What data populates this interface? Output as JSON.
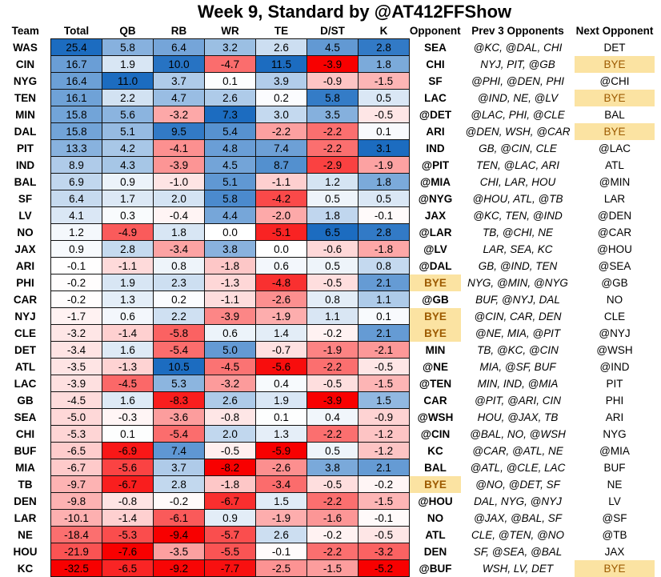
{
  "title": "Week 9, Standard by @AT412FFShow",
  "columns": [
    "Team",
    "Total",
    "QB",
    "RB",
    "WR",
    "TE",
    "D/ST",
    "K",
    "Opponent",
    "Prev  3 Opponents",
    "Next Opponent"
  ],
  "colors": {
    "neg": "#f8696b",
    "pos": "#5a8ac6",
    "bye_bg": "#fbe3a2",
    "bye_text": "#9c5a00"
  },
  "rows": [
    {
      "team": "WAS",
      "values": [
        25.4,
        5.8,
        6.4,
        3.2,
        2.6,
        4.5,
        2.8
      ],
      "opponent": "SEA",
      "prev": "@KC, @DAL, CHI",
      "next": "DET"
    },
    {
      "team": "CIN",
      "values": [
        16.7,
        1.9,
        10.0,
        -4.7,
        11.5,
        -3.9,
        1.8
      ],
      "opponent": "CHI",
      "prev": "NYJ, PIT, @GB",
      "next": "BYE"
    },
    {
      "team": "NYG",
      "values": [
        16.4,
        11.0,
        3.7,
        0.1,
        3.9,
        -0.9,
        -1.5
      ],
      "opponent": "SF",
      "prev": "@PHI, @DEN, PHI",
      "next": "@CHI"
    },
    {
      "team": "TEN",
      "values": [
        16.1,
        2.2,
        4.7,
        2.6,
        0.2,
        5.8,
        0.5
      ],
      "opponent": "LAC",
      "prev": "@IND, NE, @LV",
      "next": "BYE"
    },
    {
      "team": "MIN",
      "values": [
        15.8,
        5.6,
        -3.2,
        7.3,
        3.0,
        3.5,
        -0.5
      ],
      "opponent": "@DET",
      "prev": "@LAC, PHI, @CLE",
      "next": "BAL"
    },
    {
      "team": "DAL",
      "values": [
        15.8,
        5.1,
        9.5,
        5.4,
        -2.2,
        -2.2,
        0.1
      ],
      "opponent": "ARI",
      "prev": "@DEN, WSH, @CAR",
      "next": "BYE"
    },
    {
      "team": "PIT",
      "values": [
        13.3,
        4.2,
        -4.1,
        4.8,
        7.4,
        -2.2,
        3.1
      ],
      "opponent": "IND",
      "prev": "GB, @CIN, CLE",
      "next": "@LAC"
    },
    {
      "team": "IND",
      "values": [
        8.9,
        4.3,
        -3.9,
        4.5,
        8.7,
        -2.9,
        -1.9
      ],
      "opponent": "@PIT",
      "prev": "TEN, @LAC, ARI",
      "next": "ATL"
    },
    {
      "team": "BAL",
      "values": [
        6.9,
        0.9,
        -1.0,
        5.1,
        -1.1,
        1.2,
        1.8
      ],
      "opponent": "@MIA",
      "prev": "CHI, LAR, HOU",
      "next": "@MIN"
    },
    {
      "team": "SF",
      "values": [
        6.4,
        1.7,
        2.0,
        5.8,
        -4.2,
        0.5,
        0.5
      ],
      "opponent": "@NYG",
      "prev": "@HOU, ATL, @TB",
      "next": "LAR"
    },
    {
      "team": "LV",
      "values": [
        4.1,
        0.3,
        -0.4,
        4.4,
        -2.0,
        1.8,
        -0.1
      ],
      "opponent": "JAX",
      "prev": "@KC, TEN, @IND",
      "next": "@DEN"
    },
    {
      "team": "NO",
      "values": [
        1.2,
        -4.9,
        1.8,
        0.0,
        -5.1,
        6.5,
        2.8
      ],
      "opponent": "@LAR",
      "prev": "TB, @CHI, NE",
      "next": "@CAR"
    },
    {
      "team": "JAX",
      "values": [
        0.9,
        2.8,
        -3.4,
        3.8,
        0.0,
        -0.6,
        -1.8
      ],
      "opponent": "@LV",
      "prev": "LAR, SEA, KC",
      "next": "@HOU"
    },
    {
      "team": "ARI",
      "values": [
        -0.1,
        -1.1,
        0.8,
        -1.8,
        0.6,
        0.5,
        0.8
      ],
      "opponent": "@DAL",
      "prev": "GB, @IND, TEN",
      "next": "@SEA"
    },
    {
      "team": "PHI",
      "values": [
        -0.2,
        1.9,
        2.3,
        -1.3,
        -4.8,
        -0.5,
        2.1
      ],
      "opponent": "BYE",
      "prev": "NYG, @MIN, @NYG",
      "next": "@GB"
    },
    {
      "team": "CAR",
      "values": [
        -0.2,
        1.3,
        0.2,
        -1.1,
        -2.6,
        0.8,
        1.1
      ],
      "opponent": "@GB",
      "prev": "BUF, @NYJ, DAL",
      "next": "NO"
    },
    {
      "team": "NYJ",
      "values": [
        -1.7,
        0.6,
        2.2,
        -3.9,
        -1.9,
        1.1,
        0.1
      ],
      "opponent": "BYE",
      "prev": "@CIN, CAR, DEN",
      "next": "CLE"
    },
    {
      "team": "CLE",
      "values": [
        -3.2,
        -1.4,
        -5.8,
        0.6,
        1.4,
        -0.2,
        2.1
      ],
      "opponent": "BYE",
      "prev": "@NE, MIA, @PIT",
      "next": "@NYJ"
    },
    {
      "team": "DET",
      "values": [
        -3.4,
        1.6,
        -5.4,
        5.0,
        -0.7,
        -1.9,
        -2.1
      ],
      "opponent": "MIN",
      "prev": "TB, @KC, @CIN",
      "next": "@WSH"
    },
    {
      "team": "ATL",
      "values": [
        -3.5,
        -1.3,
        10.5,
        -4.5,
        -5.6,
        -2.2,
        -0.5
      ],
      "opponent": "@NE",
      "prev": "MIA, @SF, BUF",
      "next": "@IND"
    },
    {
      "team": "LAC",
      "values": [
        -3.9,
        -4.5,
        5.3,
        -3.2,
        0.4,
        -0.5,
        -1.5
      ],
      "opponent": "@TEN",
      "prev": "MIN, IND, @MIA",
      "next": "PIT"
    },
    {
      "team": "GB",
      "values": [
        -4.5,
        1.6,
        -8.3,
        2.6,
        1.9,
        -3.9,
        1.5
      ],
      "opponent": "CAR",
      "prev": "@PIT, @ARI, CIN",
      "next": "PHI"
    },
    {
      "team": "SEA",
      "values": [
        -5.0,
        -0.3,
        -3.6,
        -0.8,
        0.1,
        0.4,
        -0.9
      ],
      "opponent": "@WSH",
      "prev": "HOU, @JAX, TB",
      "next": "ARI"
    },
    {
      "team": "CHI",
      "values": [
        -5.3,
        0.1,
        -5.4,
        2.0,
        1.3,
        -2.2,
        -1.2
      ],
      "opponent": "@CIN",
      "prev": "@BAL, NO, @WSH",
      "next": "NYG"
    },
    {
      "team": "BUF",
      "values": [
        -6.5,
        -6.9,
        7.4,
        -0.5,
        -5.9,
        0.5,
        -1.2
      ],
      "opponent": "KC",
      "prev": "@CAR, @ATL, NE",
      "next": "@MIA"
    },
    {
      "team": "MIA",
      "values": [
        -6.7,
        -5.6,
        3.7,
        -8.2,
        -2.6,
        3.8,
        2.1
      ],
      "opponent": "BAL",
      "prev": "@ATL, @CLE, LAC",
      "next": "BUF"
    },
    {
      "team": "TB",
      "values": [
        -9.7,
        -6.7,
        2.8,
        -1.8,
        -3.4,
        -0.5,
        -0.2
      ],
      "opponent": "BYE",
      "prev": "@NO, @DET, SF",
      "next": "NE"
    },
    {
      "team": "DEN",
      "values": [
        -9.8,
        -0.8,
        -0.2,
        -6.7,
        1.5,
        -2.2,
        -1.5
      ],
      "opponent": "@HOU",
      "prev": "DAL, NYG, @NYJ",
      "next": "LV"
    },
    {
      "team": "LAR",
      "values": [
        -10.1,
        -1.4,
        -6.1,
        0.9,
        -1.9,
        -1.6,
        -0.1
      ],
      "opponent": "NO",
      "prev": "@JAX, @BAL, SF",
      "next": "@SF"
    },
    {
      "team": "NE",
      "values": [
        -18.4,
        -5.3,
        -9.4,
        -5.7,
        2.6,
        -0.2,
        -0.5
      ],
      "opponent": "ATL",
      "prev": "CLE, @TEN, @NO",
      "next": "@TB"
    },
    {
      "team": "HOU",
      "values": [
        -21.9,
        -7.6,
        -3.5,
        -5.5,
        -0.1,
        -2.2,
        -3.2
      ],
      "opponent": "DEN",
      "prev": "SF, @SEA, @BAL",
      "next": "JAX"
    },
    {
      "team": "KC",
      "values": [
        -32.5,
        -6.5,
        -9.2,
        -7.7,
        -2.5,
        -1.5,
        -5.2
      ],
      "opponent": "@BUF",
      "prev": "WSH, LV, DET",
      "next": "BYE"
    }
  ]
}
